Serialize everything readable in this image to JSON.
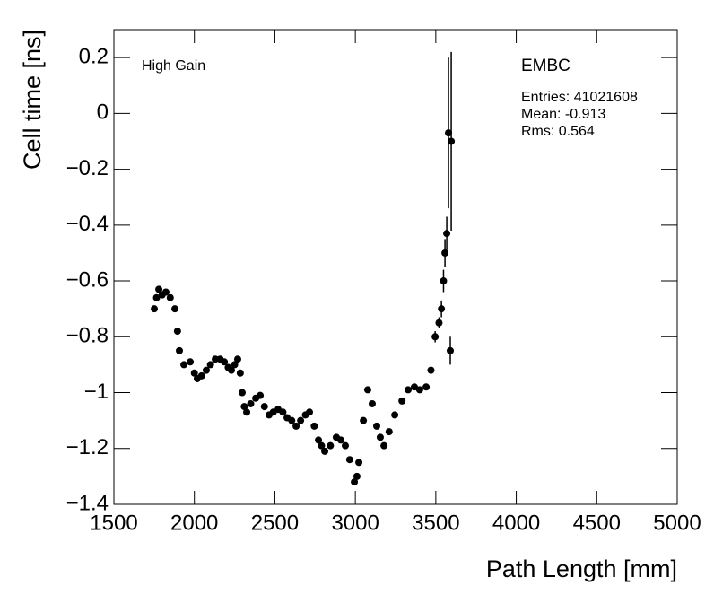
{
  "chart_data": {
    "type": "scatter",
    "x_label": "Path Length [mm]",
    "y_label": "Cell time [ns]",
    "annotations": [
      "High Gain",
      "EMBC",
      "Entries: 41021608",
      "Mean: -0.913",
      "Rms: 0.564"
    ],
    "xlim": [
      1500,
      5000
    ],
    "xticks": [
      1500,
      2000,
      2500,
      3000,
      3500,
      4000,
      4500,
      5000
    ],
    "ylim": [
      -1.4,
      0.3
    ],
    "yticks": [
      {
        "value": -1.4,
        "label": "−1.4"
      },
      {
        "value": -1.2,
        "label": "−1.2"
      },
      {
        "value": -1,
        "label": "−1"
      },
      {
        "value": -0.8,
        "label": "−0.8"
      },
      {
        "value": -0.6,
        "label": "−0.6"
      },
      {
        "value": -0.4,
        "label": "−0.4"
      },
      {
        "value": -0.2,
        "label": "−0.2"
      },
      0,
      0.2
    ],
    "color": "#000000",
    "x": [
      1751,
      1765,
      1779,
      1800,
      1823,
      1850,
      1879,
      1895,
      1907,
      1935,
      1974,
      2000,
      2018,
      2045,
      2074,
      2100,
      2130,
      2160,
      2186,
      2210,
      2230,
      2250,
      2269,
      2285,
      2297,
      2310,
      2325,
      2350,
      2381,
      2409,
      2435,
      2464,
      2490,
      2520,
      2550,
      2576,
      2605,
      2632,
      2660,
      2690,
      2715,
      2745,
      2771,
      2790,
      2810,
      2845,
      2882,
      2910,
      2938,
      2965,
      2994,
      3010,
      3022,
      3050,
      3077,
      3105,
      3133,
      3155,
      3178,
      3210,
      3245,
      3290,
      3328,
      3367,
      3400,
      3440,
      3470,
      3496,
      3520,
      3535,
      3548,
      3557,
      3568,
      3579,
      3590,
      3596
    ],
    "y": [
      -0.7,
      -0.66,
      -0.63,
      -0.65,
      -0.64,
      -0.66,
      -0.7,
      -0.78,
      -0.85,
      -0.9,
      -0.89,
      -0.93,
      -0.95,
      -0.94,
      -0.92,
      -0.9,
      -0.88,
      -0.88,
      -0.89,
      -0.91,
      -0.92,
      -0.9,
      -0.88,
      -0.93,
      -1.0,
      -1.05,
      -1.07,
      -1.04,
      -1.02,
      -1.01,
      -1.05,
      -1.08,
      -1.07,
      -1.06,
      -1.07,
      -1.09,
      -1.1,
      -1.12,
      -1.1,
      -1.08,
      -1.07,
      -1.12,
      -1.17,
      -1.19,
      -1.21,
      -1.19,
      -1.16,
      -1.17,
      -1.19,
      -1.24,
      -1.32,
      -1.3,
      -1.25,
      -1.1,
      -0.99,
      -1.04,
      -1.12,
      -1.16,
      -1.19,
      -1.14,
      -1.08,
      -1.03,
      -0.99,
      -0.98,
      -0.99,
      -0.98,
      -0.92,
      -0.8,
      -0.75,
      -0.7,
      -0.6,
      -0.5,
      -0.43,
      -0.07,
      -0.85,
      -0.1
    ],
    "errors": [
      0.01,
      0.01,
      0.01,
      0.01,
      0.01,
      0.01,
      0.01,
      0.01,
      0.01,
      0.01,
      0.01,
      0.01,
      0.01,
      0.01,
      0.01,
      0.01,
      0.01,
      0.01,
      0.01,
      0.01,
      0.01,
      0.01,
      0.01,
      0.01,
      0.01,
      0.01,
      0.01,
      0.01,
      0.01,
      0.01,
      0.01,
      0.01,
      0.01,
      0.01,
      0.01,
      0.01,
      0.01,
      0.01,
      0.01,
      0.01,
      0.01,
      0.01,
      0.01,
      0.01,
      0.01,
      0.01,
      0.01,
      0.01,
      0.01,
      0.01,
      0.01,
      0.01,
      0.01,
      0.01,
      0.01,
      0.01,
      0.01,
      0.01,
      0.01,
      0.01,
      0.01,
      0.01,
      0.01,
      0.01,
      0.01,
      0.01,
      0.01,
      0.02,
      0.02,
      0.03,
      0.04,
      0.05,
      0.06,
      0.27,
      0.05,
      0.32
    ]
  }
}
